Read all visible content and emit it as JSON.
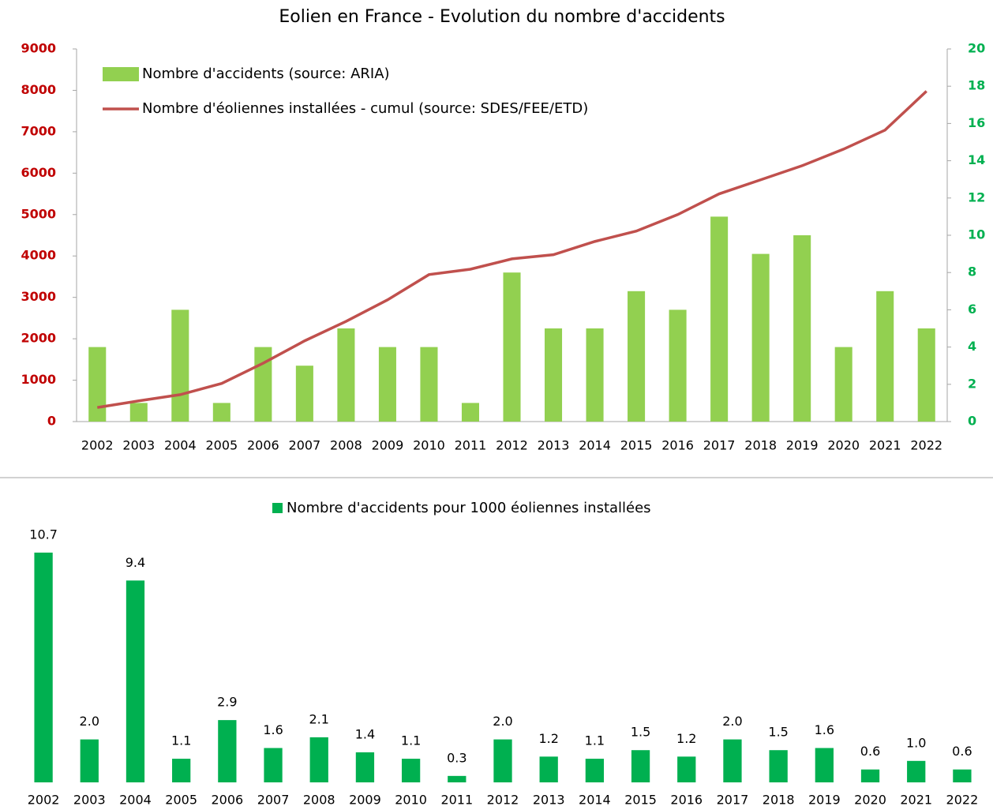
{
  "chart_data": [
    {
      "type": "combo",
      "title": "Eolien en France - Evolution du nombre d'accidents",
      "categories": [
        "2002",
        "2003",
        "2004",
        "2005",
        "2006",
        "2007",
        "2008",
        "2009",
        "2010",
        "2011",
        "2012",
        "2013",
        "2014",
        "2015",
        "2016",
        "2017",
        "2018",
        "2019",
        "2020",
        "2021",
        "2022"
      ],
      "ylim": [
        0,
        9000
      ],
      "yticks": [
        0,
        1000,
        2000,
        3000,
        4000,
        5000,
        6000,
        7000,
        8000,
        9000
      ],
      "ytick_color": "#c00000",
      "y2lim": [
        0,
        20
      ],
      "y2ticks": [
        0,
        2,
        4,
        6,
        8,
        10,
        12,
        14,
        16,
        18,
        20
      ],
      "y2tick_color": "#00b050",
      "legend": "upper left",
      "series": [
        {
          "name": "Nombre  d'accidents (source: ARIA)",
          "type": "bar",
          "axis": "y2",
          "color": "#92d050",
          "values": [
            4,
            1,
            6,
            1,
            4,
            3,
            5,
            4,
            4,
            1,
            8,
            5,
            5,
            7,
            6,
            11,
            9,
            10,
            4,
            7,
            5
          ]
        },
        {
          "name": "Nombre d'éoliennes installées  - cumul (source: SDES/FEE/ETD)",
          "type": "line",
          "color": "#c0504d",
          "values": [
            340,
            500,
            650,
            920,
            1410,
            1950,
            2420,
            2940,
            3550,
            3680,
            3930,
            4030,
            4350,
            4600,
            5000,
            5500,
            5840,
            6180,
            6580,
            7040,
            7980
          ]
        }
      ]
    },
    {
      "type": "bar",
      "categories": [
        "2002",
        "2003",
        "2004",
        "2005",
        "2006",
        "2007",
        "2008",
        "2009",
        "2010",
        "2011",
        "2012",
        "2013",
        "2014",
        "2015",
        "2016",
        "2017",
        "2018",
        "2019",
        "2020",
        "2021",
        "2022"
      ],
      "legend": "upper center",
      "series": [
        {
          "name": "Nombre  d'accidents pour 1000 éoliennes installées",
          "color": "#00b050",
          "values": [
            10.7,
            2.0,
            9.4,
            1.1,
            2.9,
            1.6,
            2.1,
            1.4,
            1.1,
            0.3,
            2.0,
            1.2,
            1.1,
            1.5,
            1.2,
            2.0,
            1.5,
            1.6,
            0.6,
            1.0,
            0.6
          ],
          "value_labels": [
            "10.7",
            "2.0",
            "9.4",
            "1.1",
            "2.9",
            "1.6",
            "2.1",
            "1.4",
            "1.1",
            "0.3",
            "2.0",
            "1.2",
            "1.1",
            "1.5",
            "1.2",
            "2.0",
            "1.5",
            "1.6",
            "0.6",
            "1.0",
            "0.6"
          ]
        }
      ]
    }
  ]
}
